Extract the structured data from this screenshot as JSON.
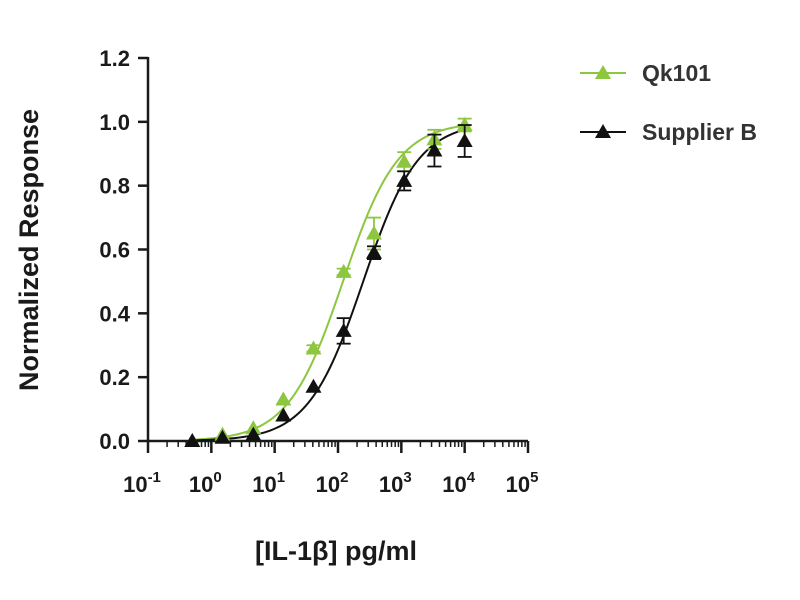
{
  "chart_data": {
    "type": "line",
    "xlabel": "[IL-1β] pg/ml",
    "ylabel": "Normalized Response",
    "x_scale": "log10",
    "xlim": [
      -1,
      5
    ],
    "ylim": [
      0,
      1.2
    ],
    "x_ticks": [
      {
        "base": "10",
        "exp": "-1",
        "value": -1
      },
      {
        "base": "10",
        "exp": "0",
        "value": 0
      },
      {
        "base": "10",
        "exp": "1",
        "value": 1
      },
      {
        "base": "10",
        "exp": "2",
        "value": 2
      },
      {
        "base": "10",
        "exp": "3",
        "value": 3
      },
      {
        "base": "10",
        "exp": "4",
        "value": 4
      },
      {
        "base": "10",
        "exp": "5",
        "value": 5
      }
    ],
    "y_ticks": [
      {
        "label": "0.0",
        "value": 0.0
      },
      {
        "label": "0.2",
        "value": 0.2
      },
      {
        "label": "0.4",
        "value": 0.4
      },
      {
        "label": "0.6",
        "value": 0.6
      },
      {
        "label": "0.8",
        "value": 0.8
      },
      {
        "label": "1.0",
        "value": 1.0
      },
      {
        "label": "1.2",
        "value": 1.2
      }
    ],
    "grid": false,
    "legend_position": "top-right",
    "series": [
      {
        "name": "Qk101",
        "color": "#8dc63f",
        "marker": "triangle",
        "ec50": 120,
        "hill": 1.0,
        "x": [
          0.5,
          1.5,
          4.6,
          13.7,
          41,
          123,
          370,
          1110,
          3330,
          10000
        ],
        "y": [
          0.0,
          0.02,
          0.04,
          0.13,
          0.29,
          0.53,
          0.65,
          0.875,
          0.945,
          0.99
        ],
        "err": [
          0,
          0,
          0,
          0,
          0.01,
          0.01,
          0.05,
          0.03,
          0.03,
          0.02
        ]
      },
      {
        "name": "Supplier B",
        "color": "#111111",
        "marker": "triangle",
        "ec50": 250,
        "hill": 1.0,
        "x": [
          0.5,
          1.5,
          4.6,
          13.7,
          41,
          123,
          370,
          1110,
          3330,
          10000
        ],
        "y": [
          0.0,
          0.01,
          0.02,
          0.08,
          0.17,
          0.345,
          0.59,
          0.815,
          0.91,
          0.94
        ],
        "err": [
          0,
          0,
          0,
          0,
          0,
          0.04,
          0.02,
          0.03,
          0.05,
          0.05
        ]
      }
    ]
  }
}
